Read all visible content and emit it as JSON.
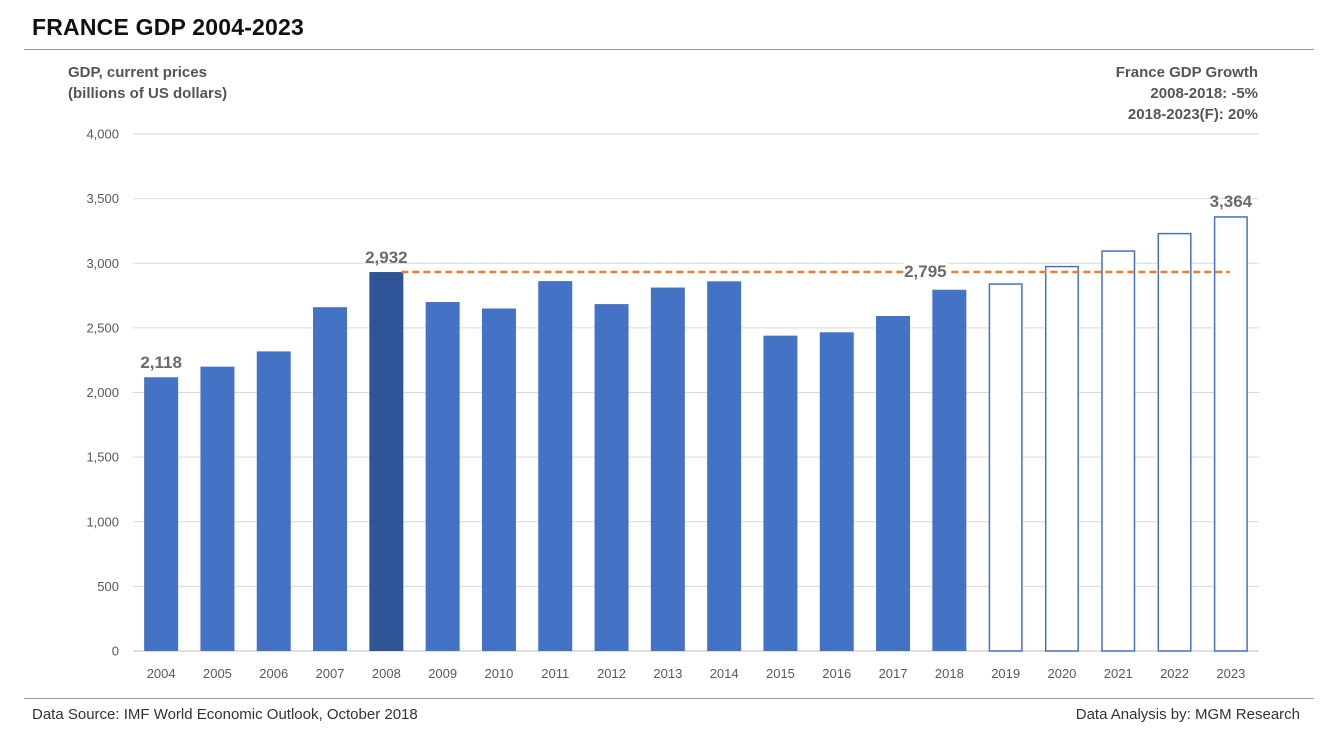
{
  "header": {
    "title": "FRANCE GDP 2004-2023"
  },
  "growth_box": {
    "title": "France GDP Growth",
    "line1": "2008-2018: -5%",
    "line2": "2018-2023(F): 20%"
  },
  "footer": {
    "source": "Data Source: IMF World Economic Outlook, October 2018",
    "credit": "Data Analysis by: MGM Research"
  },
  "colors": {
    "bar": "#4472c4",
    "bar_highlight": "#2f5597",
    "bar_outline": "#4472c4",
    "reference_line": "#ed7d31",
    "grid": "#d9d9d9"
  },
  "chart_data": {
    "type": "bar",
    "title": "FRANCE GDP 2004-2023",
    "ylabel_lines": [
      "GDP, current prices",
      "(billions of US dollars)"
    ],
    "xlabel": "",
    "ylim": [
      0,
      4000
    ],
    "yticks": [
      0,
      500,
      1000,
      1500,
      2000,
      2500,
      3000,
      3500,
      4000
    ],
    "ytick_labels": [
      "0",
      "500",
      "1,000",
      "1,500",
      "2,000",
      "2,500",
      "3,000",
      "3,500",
      "4,000"
    ],
    "grid": true,
    "categories": [
      "2004",
      "2005",
      "2006",
      "2007",
      "2008",
      "2009",
      "2010",
      "2011",
      "2012",
      "2013",
      "2014",
      "2015",
      "2016",
      "2017",
      "2018",
      "2019",
      "2020",
      "2021",
      "2022",
      "2023"
    ],
    "values": [
      2118,
      2200,
      2318,
      2660,
      2932,
      2700,
      2650,
      2862,
      2684,
      2812,
      2860,
      2440,
      2466,
      2592,
      2795,
      2845,
      2980,
      3100,
      3235,
      3364
    ],
    "highlight": "2008",
    "forecast_from": "2019",
    "data_labels": [
      {
        "category": "2004",
        "text": "2,118"
      },
      {
        "category": "2008",
        "text": "2,932"
      },
      {
        "category": "2018",
        "text": "2,795"
      },
      {
        "category": "2023",
        "text": "3,364"
      }
    ],
    "reference_line": {
      "value": 2932,
      "from": "2008",
      "to": "2023",
      "style": "dashed"
    }
  }
}
